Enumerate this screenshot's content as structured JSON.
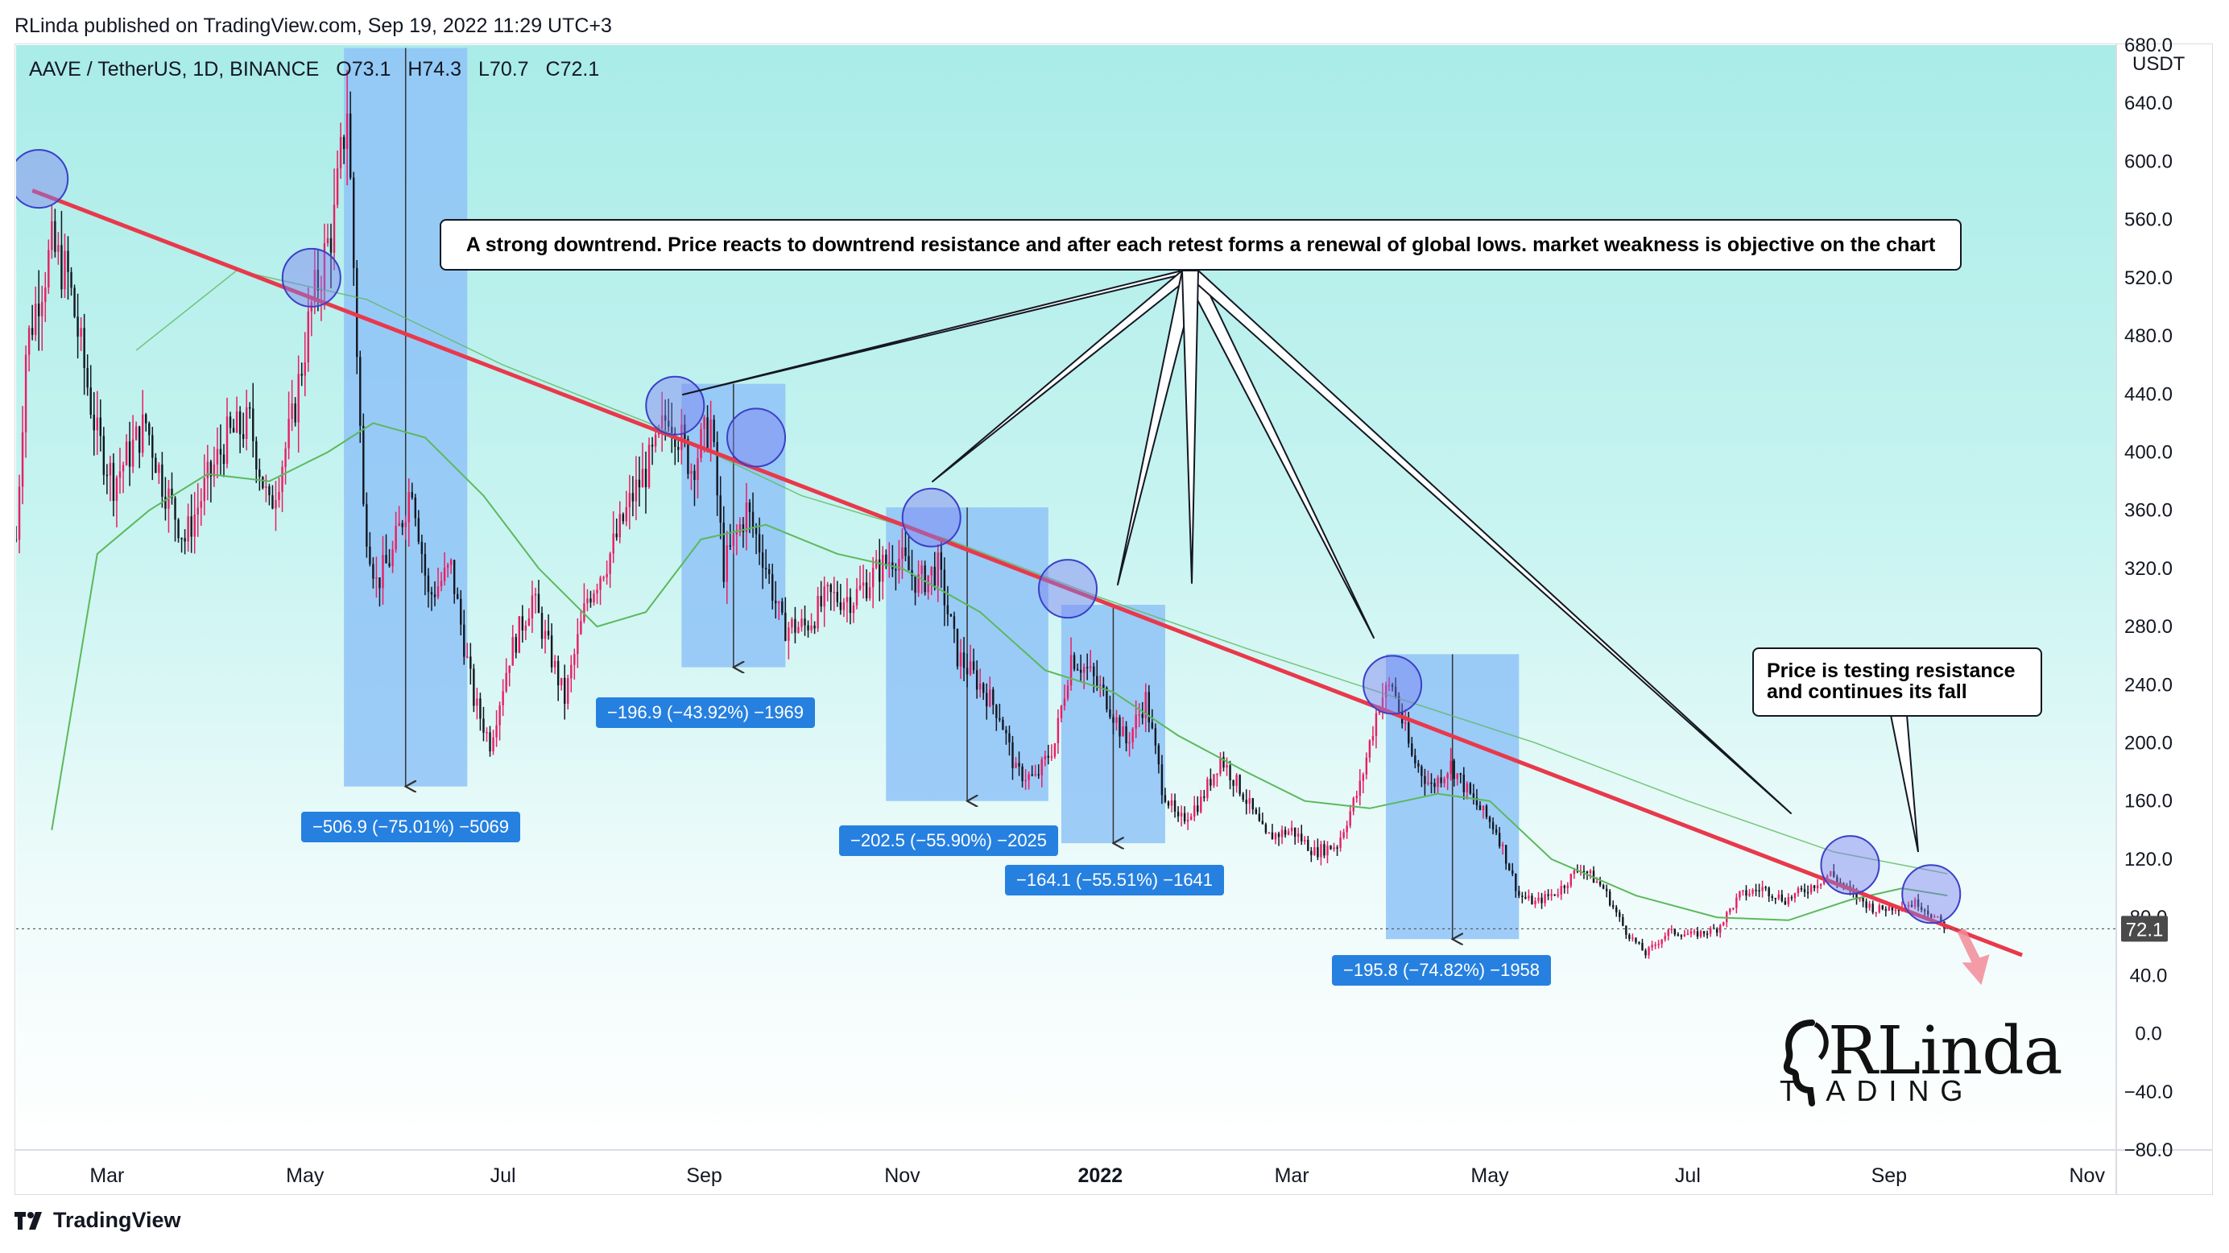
{
  "header": {
    "published_text": "RLinda published on TradingView.com, Sep 19, 2022 11:29 UTC+3"
  },
  "legend": {
    "symbol": "AAVE / TetherUS, 1D, BINANCE",
    "open": "O73.1",
    "high": "H74.3",
    "low": "L70.7",
    "close": "C72.1"
  },
  "price_axis": {
    "currency": "USDT",
    "current_price_label": "72.1"
  },
  "annotations": {
    "main_callout": "A strong downtrend. Price reacts to downtrend resistance and after each retest forms a renewal of global lows. market weakness is objective on the chart",
    "side_callout_line1": "Price is testing resistance",
    "side_callout_line2": "and continues its fall"
  },
  "measurements": [
    {
      "label": "−506.9 (−75.01%) −5069"
    },
    {
      "label": "−196.9 (−43.92%) −1969"
    },
    {
      "label": "−202.5 (−55.90%) −2025"
    },
    {
      "label": "−164.1 (−55.51%) −1641"
    },
    {
      "label": "−195.8 (−74.82%) −1958"
    }
  ],
  "footer": {
    "brand": "TradingView"
  },
  "logo": {
    "main": "RLinda",
    "sub": "T  ADING"
  },
  "colors": {
    "up_candle": "#e91e63",
    "down_candle": "#131722",
    "trendline": "#e8394b",
    "moving_average": "#5cb85c",
    "measure_box": "#8fc3f7",
    "circle_fill": "#7b7ef0",
    "label_bg": "#2680df"
  },
  "chart_data": {
    "type": "candlestick",
    "title": "AAVE / TetherUS, 1D, BINANCE",
    "ylabel": "USDT",
    "ylim": [
      -80,
      680
    ],
    "y_ticks": [
      680,
      640,
      600,
      560,
      520,
      480,
      440,
      400,
      360,
      320,
      280,
      240,
      200,
      160,
      120,
      80,
      40,
      0,
      -40,
      -80
    ],
    "y_tick_labels": [
      "680.0",
      "640.0",
      "600.0",
      "560.0",
      "520.0",
      "480.0",
      "440.0",
      "400.0",
      "360.0",
      "320.0",
      "280.0",
      "240.0",
      "200.0",
      "160.0",
      "120.0",
      "80.0",
      "40.0",
      "0.0",
      "−40.0",
      "−80.0"
    ],
    "x_range": [
      "2021-02-01",
      "2022-11-10"
    ],
    "x_ticks": [
      {
        "date": "2021-03-01",
        "label": "Mar",
        "bold": false
      },
      {
        "date": "2021-05-01",
        "label": "May",
        "bold": false
      },
      {
        "date": "2021-07-01",
        "label": "Jul",
        "bold": false
      },
      {
        "date": "2021-09-01",
        "label": "Sep",
        "bold": false
      },
      {
        "date": "2021-11-01",
        "label": "Nov",
        "bold": false
      },
      {
        "date": "2022-01-01",
        "label": "2022",
        "bold": true
      },
      {
        "date": "2022-03-01",
        "label": "Mar",
        "bold": false
      },
      {
        "date": "2022-05-01",
        "label": "May",
        "bold": false
      },
      {
        "date": "2022-07-01",
        "label": "Jul",
        "bold": false
      },
      {
        "date": "2022-09-01",
        "label": "Sep",
        "bold": false
      },
      {
        "date": "2022-11-01",
        "label": "Nov",
        "bold": false
      }
    ],
    "price_path": [
      [
        "2021-02-01",
        340
      ],
      [
        "2021-02-04",
        470
      ],
      [
        "2021-02-08",
        510
      ],
      [
        "2021-02-12",
        540
      ],
      [
        "2021-02-17",
        520
      ],
      [
        "2021-02-21",
        470
      ],
      [
        "2021-02-26",
        410
      ],
      [
        "2021-03-03",
        380
      ],
      [
        "2021-03-08",
        400
      ],
      [
        "2021-03-13",
        420
      ],
      [
        "2021-03-18",
        380
      ],
      [
        "2021-03-25",
        340
      ],
      [
        "2021-04-01",
        380
      ],
      [
        "2021-04-07",
        410
      ],
      [
        "2021-04-14",
        420
      ],
      [
        "2021-04-20",
        360
      ],
      [
        "2021-04-27",
        420
      ],
      [
        "2021-05-03",
        500
      ],
      [
        "2021-05-10",
        560
      ],
      [
        "2021-05-14",
        640
      ],
      [
        "2021-05-19",
        360
      ],
      [
        "2021-05-23",
        310
      ],
      [
        "2021-05-28",
        330
      ],
      [
        "2021-06-03",
        380
      ],
      [
        "2021-06-08",
        300
      ],
      [
        "2021-06-15",
        320
      ],
      [
        "2021-06-22",
        230
      ],
      [
        "2021-06-27",
        200
      ],
      [
        "2021-07-03",
        260
      ],
      [
        "2021-07-10",
        300
      ],
      [
        "2021-07-20",
        230
      ],
      [
        "2021-07-27",
        300
      ],
      [
        "2021-08-03",
        330
      ],
      [
        "2021-08-10",
        370
      ],
      [
        "2021-08-17",
        400
      ],
      [
        "2021-08-21",
        430
      ],
      [
        "2021-08-28",
        390
      ],
      [
        "2021-09-03",
        420
      ],
      [
        "2021-09-07",
        320
      ],
      [
        "2021-09-14",
        360
      ],
      [
        "2021-09-19",
        330
      ],
      [
        "2021-09-25",
        280
      ],
      [
        "2021-10-02",
        280
      ],
      [
        "2021-10-09",
        300
      ],
      [
        "2021-10-17",
        300
      ],
      [
        "2021-10-25",
        320
      ],
      [
        "2021-10-30",
        330
      ],
      [
        "2021-11-06",
        310
      ],
      [
        "2021-11-12",
        320
      ],
      [
        "2021-11-18",
        260
      ],
      [
        "2021-11-25",
        240
      ],
      [
        "2021-12-01",
        220
      ],
      [
        "2021-12-06",
        180
      ],
      [
        "2021-12-12",
        175
      ],
      [
        "2021-12-18",
        200
      ],
      [
        "2021-12-23",
        260
      ],
      [
        "2021-12-28",
        250
      ],
      [
        "2022-01-03",
        230
      ],
      [
        "2022-01-09",
        200
      ],
      [
        "2022-01-15",
        230
      ],
      [
        "2022-01-20",
        170
      ],
      [
        "2022-01-25",
        145
      ],
      [
        "2022-02-01",
        160
      ],
      [
        "2022-02-07",
        190
      ],
      [
        "2022-02-14",
        165
      ],
      [
        "2022-02-21",
        135
      ],
      [
        "2022-03-01",
        140
      ],
      [
        "2022-03-08",
        125
      ],
      [
        "2022-03-15",
        130
      ],
      [
        "2022-03-22",
        170
      ],
      [
        "2022-03-28",
        230
      ],
      [
        "2022-04-01",
        240
      ],
      [
        "2022-04-07",
        190
      ],
      [
        "2022-04-13",
        170
      ],
      [
        "2022-04-19",
        185
      ],
      [
        "2022-04-26",
        160
      ],
      [
        "2022-05-03",
        140
      ],
      [
        "2022-05-10",
        95
      ],
      [
        "2022-05-15",
        90
      ],
      [
        "2022-05-22",
        98
      ],
      [
        "2022-05-29",
        115
      ],
      [
        "2022-06-05",
        100
      ],
      [
        "2022-06-12",
        70
      ],
      [
        "2022-06-18",
        55
      ],
      [
        "2022-06-25",
        70
      ],
      [
        "2022-07-03",
        68
      ],
      [
        "2022-07-10",
        72
      ],
      [
        "2022-07-17",
        95
      ],
      [
        "2022-07-24",
        100
      ],
      [
        "2022-07-31",
        92
      ],
      [
        "2022-08-07",
        100
      ],
      [
        "2022-08-14",
        110
      ],
      [
        "2022-08-21",
        95
      ],
      [
        "2022-08-28",
        85
      ],
      [
        "2022-09-04",
        88
      ],
      [
        "2022-09-10",
        90
      ],
      [
        "2022-09-15",
        80
      ],
      [
        "2022-09-19",
        72
      ]
    ],
    "moving_average": [
      [
        "2021-02-12",
        140
      ],
      [
        "2021-02-26",
        330
      ],
      [
        "2021-03-14",
        360
      ],
      [
        "2021-04-01",
        385
      ],
      [
        "2021-04-20",
        380
      ],
      [
        "2021-05-08",
        400
      ],
      [
        "2021-05-22",
        420
      ],
      [
        "2021-06-07",
        410
      ],
      [
        "2021-06-25",
        370
      ],
      [
        "2021-07-12",
        320
      ],
      [
        "2021-07-30",
        280
      ],
      [
        "2021-08-14",
        290
      ],
      [
        "2021-08-31",
        340
      ],
      [
        "2021-09-20",
        350
      ],
      [
        "2021-10-12",
        330
      ],
      [
        "2021-11-01",
        320
      ],
      [
        "2021-11-25",
        290
      ],
      [
        "2021-12-15",
        250
      ],
      [
        "2022-01-05",
        235
      ],
      [
        "2022-01-25",
        205
      ],
      [
        "2022-02-15",
        180
      ],
      [
        "2022-03-05",
        160
      ],
      [
        "2022-03-25",
        155
      ],
      [
        "2022-04-15",
        165
      ],
      [
        "2022-05-01",
        160
      ],
      [
        "2022-05-20",
        120
      ],
      [
        "2022-06-15",
        95
      ],
      [
        "2022-07-10",
        80
      ],
      [
        "2022-08-01",
        78
      ],
      [
        "2022-08-20",
        92
      ],
      [
        "2022-09-05",
        100
      ],
      [
        "2022-09-19",
        95
      ]
    ],
    "moving_average_2": [
      [
        "2021-03-10",
        470
      ],
      [
        "2021-04-10",
        525
      ],
      [
        "2021-05-20",
        505
      ],
      [
        "2021-07-01",
        460
      ],
      [
        "2021-08-15",
        420
      ],
      [
        "2021-10-01",
        370
      ],
      [
        "2021-11-15",
        340
      ],
      [
        "2022-01-01",
        300
      ],
      [
        "2022-02-15",
        265
      ],
      [
        "2022-04-01",
        232
      ],
      [
        "2022-05-15",
        200
      ],
      [
        "2022-07-01",
        160
      ],
      [
        "2022-08-15",
        125
      ],
      [
        "2022-09-19",
        110
      ]
    ],
    "trendline": {
      "start": [
        "2021-02-06",
        580
      ],
      "end": [
        "2022-10-12",
        54
      ]
    },
    "measure_boxes": [
      {
        "from": "2021-05-13",
        "to": "2021-06-20",
        "high": 678,
        "low": 170
      },
      {
        "from": "2021-08-25",
        "to": "2021-09-26",
        "high": 447,
        "low": 252
      },
      {
        "from": "2021-10-27",
        "to": "2021-12-16",
        "high": 362,
        "low": 160
      },
      {
        "from": "2021-12-20",
        "to": "2022-01-21",
        "high": 295,
        "low": 131
      },
      {
        "from": "2022-03-30",
        "to": "2022-05-10",
        "high": 261,
        "low": 65
      }
    ],
    "touch_circles": [
      [
        "2021-02-08",
        588
      ],
      [
        "2021-05-03",
        520
      ],
      [
        "2021-08-23",
        432
      ],
      [
        "2021-09-17",
        410
      ],
      [
        "2021-11-10",
        355
      ],
      [
        "2021-12-22",
        306
      ],
      [
        "2022-04-01",
        240
      ],
      [
        "2022-08-20",
        116
      ],
      [
        "2022-09-14",
        96
      ]
    ],
    "current_price": 72.1
  }
}
